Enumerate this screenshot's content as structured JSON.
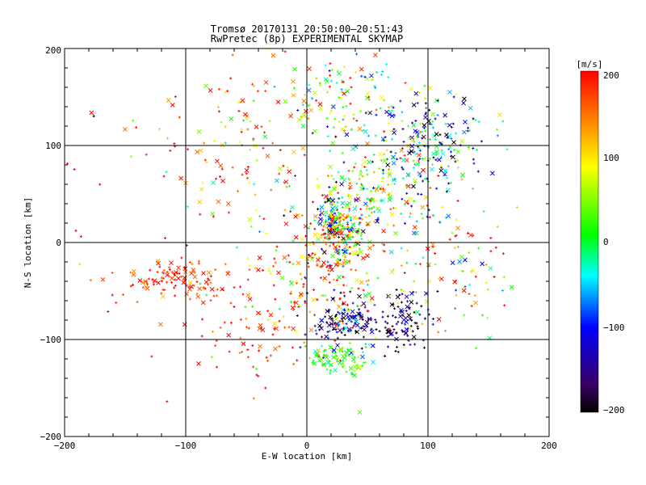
{
  "chart_data": {
    "type": "scatter",
    "title": "Tromsø 20170131 20:50:00–20:51:43",
    "subtitle": "RwPretec (8p) EXPERIMENTAL SKYMAP",
    "xlabel": "E-W location [km]",
    "ylabel": "N-S location [km]",
    "xlim": [
      -200,
      200
    ],
    "ylim": [
      -200,
      200
    ],
    "xticks": [
      "−200",
      "−100",
      "0",
      "100",
      "200"
    ],
    "yticks": [
      "−200",
      "−100",
      "0",
      "100",
      "200"
    ],
    "grid_lines": [
      -100,
      0,
      100
    ],
    "markers": [
      "x",
      "+"
    ],
    "colorbar": {
      "label": "[m/s]",
      "range": [
        -200,
        200
      ],
      "ticks": [
        "200",
        "100",
        "0",
        "−100",
        "−200"
      ],
      "colormap": [
        "#000000",
        "#3c0064",
        "#0000ff",
        "#00ffff",
        "#00ff00",
        "#ffff00",
        "#ff8000",
        "#ff0000"
      ]
    },
    "clusters": [
      {
        "cx": 25,
        "cy": 15,
        "sx": 10,
        "sy": 18,
        "n": 260,
        "v": 30,
        "vs": 140
      },
      {
        "cx": -110,
        "cy": -40,
        "sx": 25,
        "sy": 10,
        "n": 110,
        "v": 185,
        "vs": 25
      },
      {
        "cx": 35,
        "cy": -80,
        "sx": 15,
        "sy": 12,
        "n": 140,
        "v": -150,
        "vs": 60
      },
      {
        "cx": 80,
        "cy": -80,
        "sx": 12,
        "sy": 15,
        "n": 90,
        "v": -170,
        "vs": 50
      },
      {
        "cx": 30,
        "cy": -120,
        "sx": 12,
        "sy": 8,
        "n": 90,
        "v": 20,
        "vs": 30
      },
      {
        "cx": 100,
        "cy": 100,
        "sx": 25,
        "sy": 30,
        "n": 200,
        "v": -80,
        "vs": 90
      },
      {
        "cx": 60,
        "cy": 50,
        "sx": 25,
        "sy": 30,
        "n": 180,
        "v": 60,
        "vs": 100
      },
      {
        "cx": 10,
        "cy": -30,
        "sx": 30,
        "sy": 30,
        "n": 160,
        "v": 150,
        "vs": 70
      },
      {
        "cx": 30,
        "cy": 150,
        "sx": 30,
        "sy": 25,
        "n": 120,
        "v": 60,
        "vs": 100
      },
      {
        "cx": -50,
        "cy": 100,
        "sx": 40,
        "sy": 40,
        "n": 110,
        "v": 130,
        "vs": 80
      },
      {
        "cx": -40,
        "cy": -90,
        "sx": 25,
        "sy": 25,
        "n": 60,
        "v": 180,
        "vs": 40
      },
      {
        "cx": 130,
        "cy": -20,
        "sx": 30,
        "sy": 40,
        "n": 90,
        "v": 100,
        "vs": 120
      },
      {
        "cx": 0,
        "cy": 0,
        "sx": 110,
        "sy": 90,
        "n": 130,
        "v": 90,
        "vs": 130
      }
    ]
  }
}
